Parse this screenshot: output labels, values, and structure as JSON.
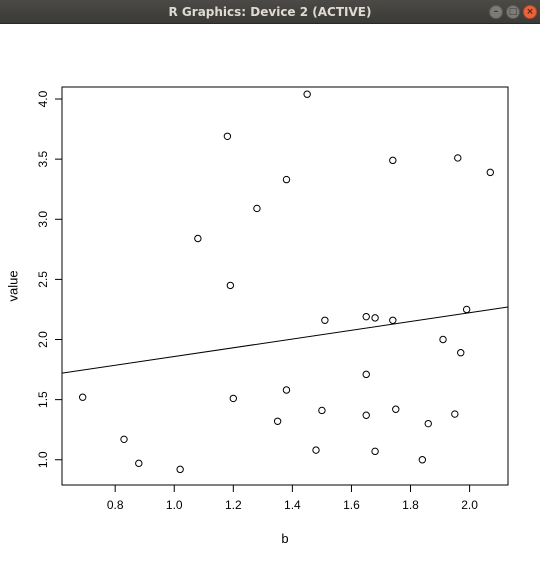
{
  "window": {
    "title": "R Graphics: Device 2 (ACTIVE)",
    "min_icon": "minimize-icon",
    "max_icon": "maximize-icon",
    "close_icon": "close-icon"
  },
  "chart_data": {
    "type": "scatter",
    "title": "",
    "xlabel": "b",
    "ylabel": "value",
    "xlim": [
      0.62,
      2.13
    ],
    "ylim": [
      0.79,
      4.1
    ],
    "xticks": [
      0.8,
      1.0,
      1.2,
      1.4,
      1.6,
      1.8,
      2.0
    ],
    "xtick_labels": [
      "0.8",
      "1.0",
      "1.2",
      "1.4",
      "1.6",
      "1.8",
      "2.0"
    ],
    "yticks": [
      1.0,
      1.5,
      2.0,
      2.5,
      3.0,
      3.5,
      4.0
    ],
    "ytick_labels": [
      "1.0",
      "1.5",
      "2.0",
      "2.5",
      "3.0",
      "3.5",
      "4.0"
    ],
    "grid": false,
    "legend": "none",
    "point_style": "open-circle",
    "points": [
      {
        "x": 0.69,
        "y": 1.52
      },
      {
        "x": 0.83,
        "y": 1.17
      },
      {
        "x": 0.88,
        "y": 0.97
      },
      {
        "x": 1.02,
        "y": 0.92
      },
      {
        "x": 1.08,
        "y": 2.84
      },
      {
        "x": 1.18,
        "y": 3.69
      },
      {
        "x": 1.19,
        "y": 2.45
      },
      {
        "x": 1.2,
        "y": 1.51
      },
      {
        "x": 1.28,
        "y": 3.09
      },
      {
        "x": 1.35,
        "y": 1.32
      },
      {
        "x": 1.38,
        "y": 3.33
      },
      {
        "x": 1.38,
        "y": 1.58
      },
      {
        "x": 1.45,
        "y": 4.04
      },
      {
        "x": 1.48,
        "y": 1.08
      },
      {
        "x": 1.5,
        "y": 1.41
      },
      {
        "x": 1.51,
        "y": 2.16
      },
      {
        "x": 1.65,
        "y": 2.19
      },
      {
        "x": 1.65,
        "y": 1.71
      },
      {
        "x": 1.65,
        "y": 1.37
      },
      {
        "x": 1.68,
        "y": 2.18
      },
      {
        "x": 1.68,
        "y": 1.07
      },
      {
        "x": 1.74,
        "y": 3.49
      },
      {
        "x": 1.74,
        "y": 2.16
      },
      {
        "x": 1.75,
        "y": 1.42
      },
      {
        "x": 1.84,
        "y": 1.0
      },
      {
        "x": 1.86,
        "y": 1.3
      },
      {
        "x": 1.91,
        "y": 2.0
      },
      {
        "x": 1.95,
        "y": 1.38
      },
      {
        "x": 1.96,
        "y": 3.51
      },
      {
        "x": 1.97,
        "y": 1.89
      },
      {
        "x": 1.99,
        "y": 2.25
      },
      {
        "x": 2.07,
        "y": 3.39
      }
    ],
    "line": {
      "x": [
        0.62,
        2.13
      ],
      "y": [
        1.72,
        2.27
      ]
    }
  }
}
